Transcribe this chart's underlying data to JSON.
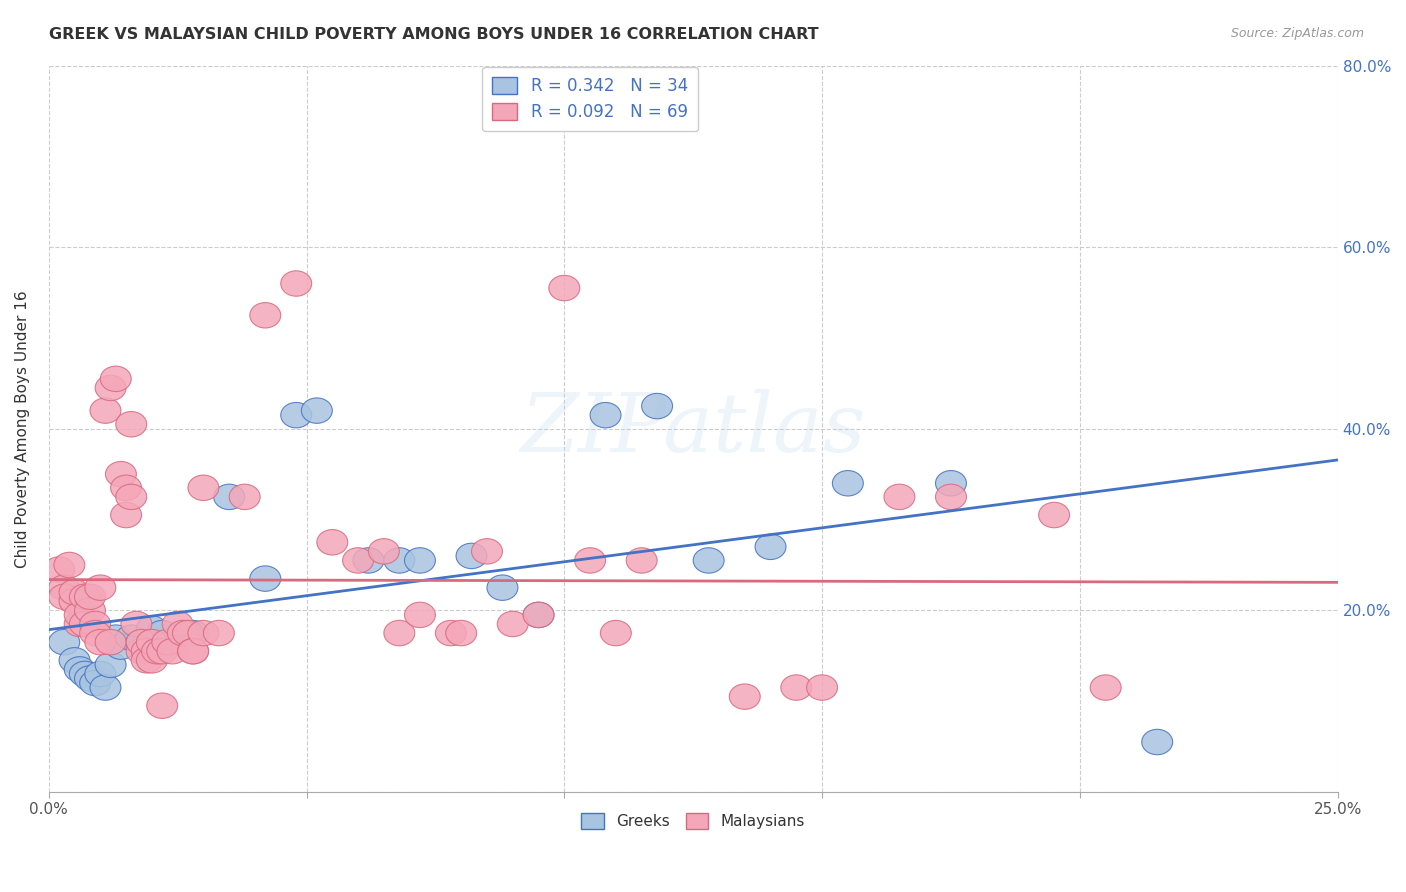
{
  "title": "GREEK VS MALAYSIAN CHILD POVERTY AMONG BOYS UNDER 16 CORRELATION CHART",
  "source": "Source: ZipAtlas.com",
  "ylabel_label": "Child Poverty Among Boys Under 16",
  "xlim": [
    0.0,
    0.25
  ],
  "ylim": [
    0.0,
    0.8
  ],
  "xticks": [
    0.0,
    0.05,
    0.1,
    0.15,
    0.2,
    0.25
  ],
  "yticks": [
    0.0,
    0.2,
    0.4,
    0.6,
    0.8
  ],
  "right_ytick_labels": [
    "",
    "20.0%",
    "40.0%",
    "60.0%",
    "80.0%"
  ],
  "xtick_labels": [
    "0.0%",
    "",
    "",
    "",
    "",
    "25.0%"
  ],
  "greek_R": 0.342,
  "greek_N": 34,
  "malaysian_R": 0.092,
  "malaysian_N": 69,
  "greek_color": "#a8c4e0",
  "malaysian_color": "#f4a7b9",
  "greek_line_color": "#4472c4",
  "malaysian_line_color": "#d9697f",
  "watermark_text": "ZIPatlas",
  "greek_points": [
    [
      0.003,
      0.165
    ],
    [
      0.005,
      0.145
    ],
    [
      0.006,
      0.135
    ],
    [
      0.007,
      0.13
    ],
    [
      0.008,
      0.125
    ],
    [
      0.009,
      0.12
    ],
    [
      0.01,
      0.13
    ],
    [
      0.011,
      0.115
    ],
    [
      0.012,
      0.14
    ],
    [
      0.013,
      0.17
    ],
    [
      0.014,
      0.16
    ],
    [
      0.016,
      0.17
    ],
    [
      0.018,
      0.165
    ],
    [
      0.02,
      0.18
    ],
    [
      0.022,
      0.175
    ],
    [
      0.024,
      0.165
    ],
    [
      0.028,
      0.175
    ],
    [
      0.035,
      0.325
    ],
    [
      0.042,
      0.235
    ],
    [
      0.048,
      0.415
    ],
    [
      0.052,
      0.42
    ],
    [
      0.062,
      0.255
    ],
    [
      0.068,
      0.255
    ],
    [
      0.072,
      0.255
    ],
    [
      0.082,
      0.26
    ],
    [
      0.088,
      0.225
    ],
    [
      0.095,
      0.195
    ],
    [
      0.108,
      0.415
    ],
    [
      0.118,
      0.425
    ],
    [
      0.128,
      0.255
    ],
    [
      0.14,
      0.27
    ],
    [
      0.155,
      0.34
    ],
    [
      0.175,
      0.34
    ],
    [
      0.215,
      0.055
    ]
  ],
  "malaysian_points": [
    [
      0.002,
      0.245
    ],
    [
      0.003,
      0.225
    ],
    [
      0.003,
      0.215
    ],
    [
      0.004,
      0.25
    ],
    [
      0.005,
      0.21
    ],
    [
      0.005,
      0.22
    ],
    [
      0.006,
      0.185
    ],
    [
      0.006,
      0.195
    ],
    [
      0.007,
      0.185
    ],
    [
      0.007,
      0.215
    ],
    [
      0.008,
      0.2
    ],
    [
      0.008,
      0.215
    ],
    [
      0.009,
      0.185
    ],
    [
      0.009,
      0.175
    ],
    [
      0.01,
      0.225
    ],
    [
      0.01,
      0.165
    ],
    [
      0.011,
      0.42
    ],
    [
      0.012,
      0.165
    ],
    [
      0.012,
      0.445
    ],
    [
      0.013,
      0.455
    ],
    [
      0.014,
      0.35
    ],
    [
      0.015,
      0.335
    ],
    [
      0.015,
      0.305
    ],
    [
      0.016,
      0.325
    ],
    [
      0.016,
      0.405
    ],
    [
      0.017,
      0.185
    ],
    [
      0.018,
      0.155
    ],
    [
      0.018,
      0.165
    ],
    [
      0.019,
      0.155
    ],
    [
      0.019,
      0.145
    ],
    [
      0.02,
      0.145
    ],
    [
      0.02,
      0.165
    ],
    [
      0.021,
      0.155
    ],
    [
      0.022,
      0.155
    ],
    [
      0.022,
      0.095
    ],
    [
      0.023,
      0.165
    ],
    [
      0.024,
      0.155
    ],
    [
      0.025,
      0.185
    ],
    [
      0.026,
      0.175
    ],
    [
      0.027,
      0.175
    ],
    [
      0.028,
      0.155
    ],
    [
      0.028,
      0.155
    ],
    [
      0.03,
      0.335
    ],
    [
      0.03,
      0.175
    ],
    [
      0.033,
      0.175
    ],
    [
      0.038,
      0.325
    ],
    [
      0.042,
      0.525
    ],
    [
      0.048,
      0.56
    ],
    [
      0.055,
      0.275
    ],
    [
      0.06,
      0.255
    ],
    [
      0.065,
      0.265
    ],
    [
      0.068,
      0.175
    ],
    [
      0.072,
      0.195
    ],
    [
      0.078,
      0.175
    ],
    [
      0.08,
      0.175
    ],
    [
      0.085,
      0.265
    ],
    [
      0.09,
      0.185
    ],
    [
      0.095,
      0.195
    ],
    [
      0.1,
      0.555
    ],
    [
      0.105,
      0.255
    ],
    [
      0.11,
      0.175
    ],
    [
      0.115,
      0.255
    ],
    [
      0.135,
      0.105
    ],
    [
      0.145,
      0.115
    ],
    [
      0.15,
      0.115
    ],
    [
      0.165,
      0.325
    ],
    [
      0.175,
      0.325
    ],
    [
      0.195,
      0.305
    ],
    [
      0.205,
      0.115
    ]
  ]
}
